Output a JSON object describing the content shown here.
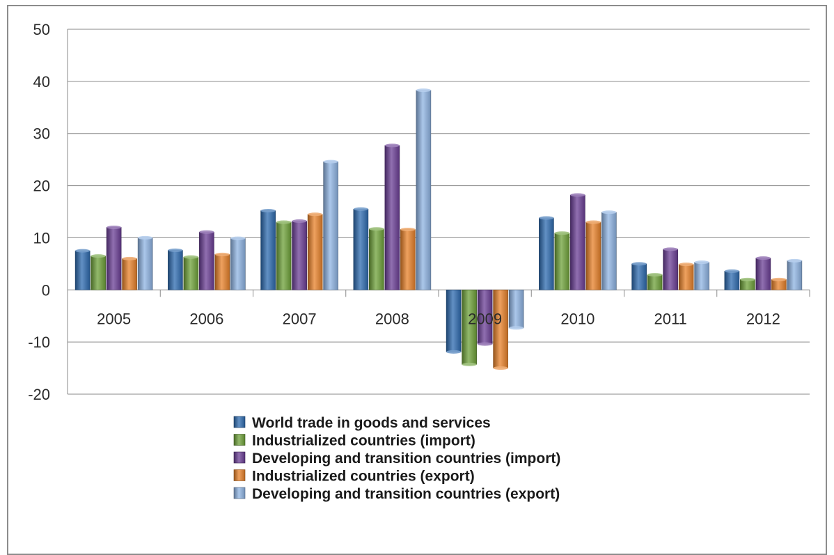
{
  "chart_data": {
    "type": "bar",
    "categories": [
      "2005",
      "2006",
      "2007",
      "2008",
      "2009",
      "2010",
      "2011",
      "2012"
    ],
    "series": [
      {
        "name": "World trade in goods and services",
        "color": "#2e6bb0",
        "values": [
          7.5,
          7.6,
          15.2,
          15.5,
          -11.9,
          13.8,
          5.0,
          3.6
        ]
      },
      {
        "name": "Industrialized countries (import)",
        "color": "#6fa23a",
        "values": [
          6.5,
          6.3,
          13.0,
          11.7,
          -14.3,
          10.9,
          2.9,
          2.0
        ]
      },
      {
        "name": "Developing and transition countries (import)",
        "color": "#6b3f96",
        "values": [
          12.0,
          11.1,
          13.2,
          27.7,
          -10.4,
          18.2,
          7.8,
          6.1
        ]
      },
      {
        "name": "Industrialized countries (export)",
        "color": "#e8822a",
        "values": [
          6.0,
          6.8,
          14.5,
          11.6,
          -15.0,
          13.0,
          4.9,
          2.0
        ]
      },
      {
        "name": "Developing and transition countries (export)",
        "color": "#8fb4e3",
        "values": [
          10.0,
          9.9,
          24.6,
          38.3,
          -7.3,
          14.9,
          5.3,
          5.6
        ]
      }
    ],
    "yticks": [
      50,
      40,
      30,
      20,
      10,
      0,
      -10,
      -20
    ],
    "ylim": [
      -20,
      50
    ],
    "grid": true,
    "legend_position": "bottom"
  }
}
